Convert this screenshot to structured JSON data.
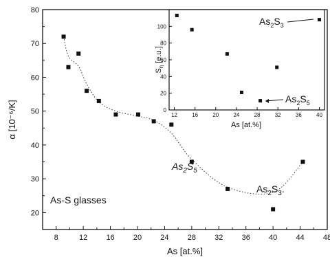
{
  "chart_data": [
    {
      "type": "scatter",
      "xlabel": "As [at.%]",
      "ylabel": "α [10⁻⁶/K]",
      "xlim": [
        6,
        48
      ],
      "ylim": [
        15,
        80
      ],
      "x_ticks": [
        "8",
        "12",
        "16",
        "20",
        "24",
        "28",
        "32",
        "36",
        "40",
        "44",
        "48"
      ],
      "y_ticks": [
        "20",
        "30",
        "40",
        "50",
        "60",
        "70",
        "80"
      ],
      "grid": false,
      "series": [
        {
          "x": [
            9.1,
            9.8,
            11.3,
            12.5,
            14.3,
            16.8,
            20.1,
            22.4,
            25.0,
            28.0,
            33.3,
            40.0,
            44.4
          ],
          "y": [
            72,
            63,
            67,
            56,
            53,
            49,
            49,
            47,
            46,
            35,
            27,
            21,
            35
          ],
          "marker": "square",
          "fit_curve": true
        }
      ],
      "annotations": {
        "as2s5": {
          "pre": "As",
          "sub1": "2",
          "mid": "S",
          "sub2": "5"
        },
        "as2s3": {
          "pre": "As",
          "sub1": "2",
          "mid": "S",
          "sub2": "3",
          "trail": "."
        },
        "label": "As-S glasses"
      }
    },
    {
      "type": "scatter",
      "inset": true,
      "xlabel": "As [at.%]",
      "ylabel": "S",
      "ylabel_sub": "η",
      "ylabel_unit": " [e.u.]",
      "xlim": [
        11,
        41
      ],
      "ylim": [
        0,
        120
      ],
      "x_ticks": [
        "12",
        "16",
        "20",
        "24",
        "28",
        "32",
        "36",
        "40"
      ],
      "y_ticks": [
        "0",
        "20",
        "40",
        "60",
        "80",
        "100"
      ],
      "series": [
        {
          "x": [
            12.5,
            15.4,
            22.2,
            25.0,
            28.6,
            31.8,
            40.0
          ],
          "y": [
            113,
            96,
            67,
            21,
            11,
            51,
            108
          ],
          "marker": "square"
        }
      ],
      "annotations": {
        "as2s3": {
          "pre": "As",
          "sub1": "2",
          "mid": "S",
          "sub2": "3"
        },
        "as2s5": {
          "pre": "As",
          "sub1": "2",
          "mid": "S",
          "sub2": "5"
        }
      }
    }
  ]
}
